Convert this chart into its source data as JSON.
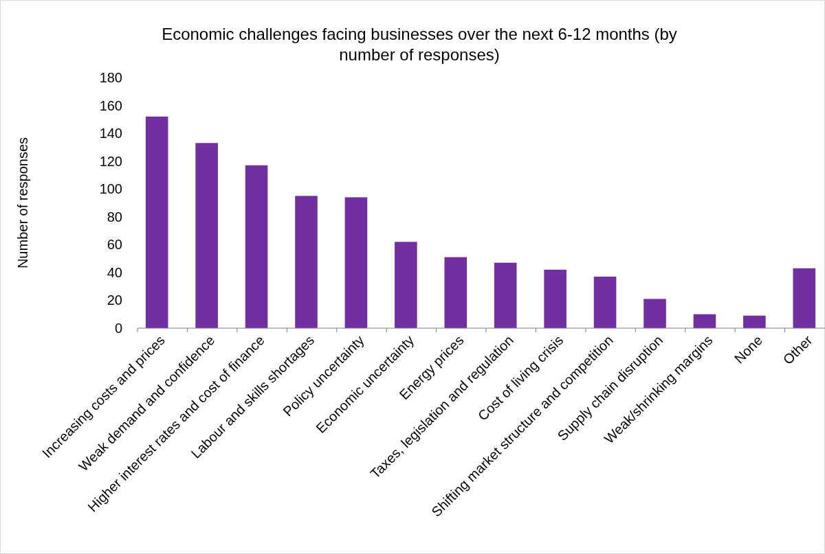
{
  "chart_data": {
    "type": "bar",
    "title": "Economic challenges facing businesses over the next 6-12 months (by number of responses)",
    "ylabel": "Number of responses",
    "categories": [
      "Increasing costs and prices",
      "Weak demand and confidence",
      "Higher interest rates and cost of finance",
      "Labour and skills shortages",
      "Policy uncertainty",
      "Economic uncertainty",
      "Energy prices",
      "Taxes, legislation and regulation",
      "Cost of living crisis",
      "Shifting market structure and competition",
      "Supply chain disruption",
      "Weak/shrinking margins",
      "None",
      "Other"
    ],
    "values": [
      152,
      133,
      117,
      95,
      94,
      62,
      51,
      47,
      42,
      37,
      21,
      10,
      9,
      43
    ],
    "color": "#7030a0",
    "ylim": [
      0,
      180
    ],
    "yticks": [
      0,
      20,
      40,
      60,
      80,
      100,
      120,
      140,
      160,
      180
    ],
    "grid": false
  }
}
